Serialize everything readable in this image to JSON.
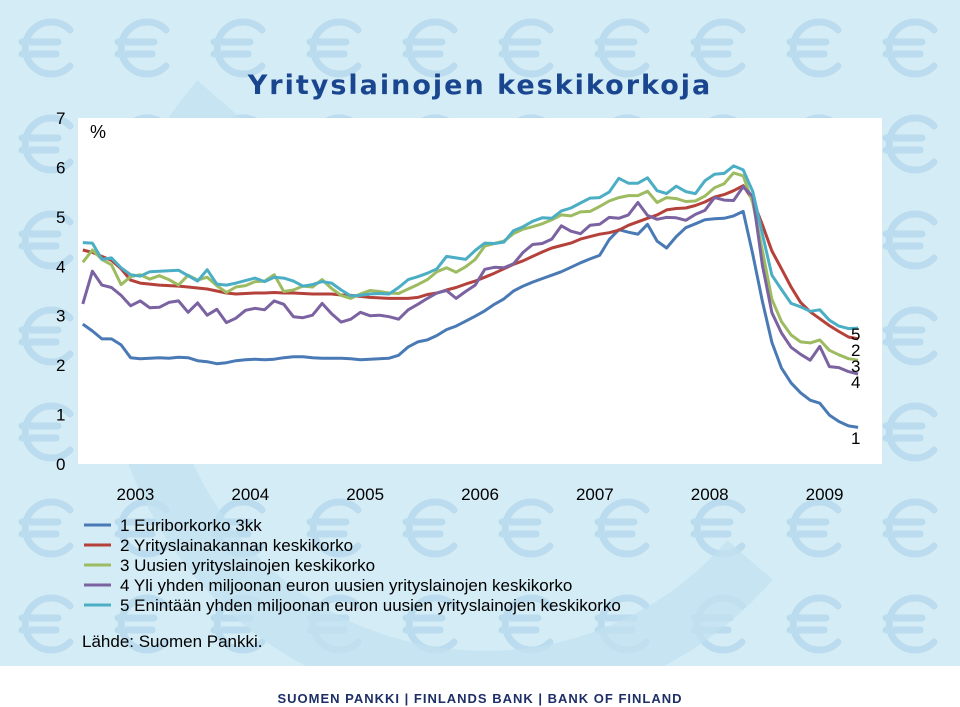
{
  "title": "Yrityslainojen keskikorkoja",
  "source": "Lähde: Suomen Pankki.",
  "footer": "SUOMEN PANKKI | FINLANDS BANK | BANK OF FINLAND",
  "colors": {
    "background": "#d4ecf6",
    "plot_background": "#ffffff",
    "title": "#1a4690",
    "footer_text": "#1d2f66",
    "watermark": "#b9dcee"
  },
  "watermark_icon": "euro-sign-icon",
  "chart_data": {
    "type": "line",
    "title": "Yrityslainojen keskikorkoja",
    "ylabel": "%",
    "ylim": [
      0,
      7
    ],
    "yticks": [
      "0",
      "1",
      "2",
      "3",
      "4",
      "5",
      "6",
      "7"
    ],
    "x_start": "2003-01",
    "x_end": "2009-12",
    "xticks": [
      "2003",
      "2004",
      "2005",
      "2006",
      "2007",
      "2008",
      "2009"
    ],
    "grid": false,
    "legend_position": "bottom",
    "end_labels": [
      "5",
      "2",
      "3",
      "4",
      "1"
    ],
    "series": [
      {
        "name": "1 Euriborkorko 3kk",
        "end_label": "1",
        "color": "#4a7ab5",
        "start": "2003-01",
        "values": [
          2.83,
          2.69,
          2.53,
          2.53,
          2.41,
          2.15,
          2.13,
          2.14,
          2.15,
          2.14,
          2.16,
          2.15,
          2.09,
          2.07,
          2.03,
          2.05,
          2.09,
          2.11,
          2.12,
          2.11,
          2.12,
          2.15,
          2.17,
          2.17,
          2.15,
          2.14,
          2.14,
          2.14,
          2.13,
          2.11,
          2.12,
          2.13,
          2.14,
          2.2,
          2.37,
          2.47,
          2.51,
          2.6,
          2.72,
          2.79,
          2.89,
          2.99,
          3.1,
          3.23,
          3.34,
          3.5,
          3.6,
          3.68,
          3.75,
          3.82,
          3.89,
          3.98,
          4.07,
          4.15,
          4.22,
          4.54,
          4.74,
          4.69,
          4.65,
          4.85,
          4.51,
          4.37,
          4.6,
          4.78,
          4.86,
          4.94,
          4.96,
          4.97,
          5.02,
          5.11,
          4.24,
          3.29,
          2.46,
          1.94,
          1.64,
          1.44,
          1.29,
          1.23,
          0.99,
          0.86,
          0.77,
          0.74
        ]
      },
      {
        "name": "2 Yrityslainakannan keskikorko",
        "end_label": "2",
        "color": "#b5413b",
        "start": "2003-01",
        "values": [
          4.33,
          4.28,
          4.2,
          4.12,
          3.95,
          3.72,
          3.66,
          3.64,
          3.62,
          3.61,
          3.6,
          3.58,
          3.56,
          3.54,
          3.5,
          3.46,
          3.44,
          3.45,
          3.46,
          3.46,
          3.47,
          3.46,
          3.46,
          3.45,
          3.44,
          3.44,
          3.44,
          3.42,
          3.41,
          3.39,
          3.37,
          3.36,
          3.35,
          3.35,
          3.35,
          3.37,
          3.43,
          3.46,
          3.52,
          3.57,
          3.64,
          3.7,
          3.78,
          3.86,
          3.95,
          4.04,
          4.11,
          4.2,
          4.29,
          4.37,
          4.42,
          4.47,
          4.55,
          4.6,
          4.65,
          4.68,
          4.73,
          4.83,
          4.9,
          4.97,
          5.04,
          5.14,
          5.17,
          5.18,
          5.23,
          5.3,
          5.4,
          5.45,
          5.53,
          5.63,
          5.34,
          4.84,
          4.31,
          3.95,
          3.58,
          3.27,
          3.08,
          2.94,
          2.8,
          2.68,
          2.57,
          2.53
        ]
      },
      {
        "name": "3 Uusien yrityslainojen keskikorko",
        "end_label": "3",
        "color": "#9dbb61",
        "start": "2003-01",
        "values": [
          4.08,
          4.33,
          4.14,
          4.03,
          3.63,
          3.79,
          3.83,
          3.74,
          3.81,
          3.73,
          3.62,
          3.82,
          3.72,
          3.78,
          3.61,
          3.47,
          3.58,
          3.61,
          3.69,
          3.7,
          3.83,
          3.49,
          3.52,
          3.6,
          3.58,
          3.73,
          3.55,
          3.41,
          3.35,
          3.44,
          3.51,
          3.49,
          3.46,
          3.45,
          3.54,
          3.63,
          3.73,
          3.89,
          3.97,
          3.88,
          3.99,
          4.14,
          4.41,
          4.46,
          4.51,
          4.66,
          4.75,
          4.8,
          4.86,
          4.94,
          5.04,
          5.02,
          5.1,
          5.11,
          5.21,
          5.32,
          5.39,
          5.43,
          5.43,
          5.52,
          5.29,
          5.39,
          5.37,
          5.31,
          5.32,
          5.42,
          5.59,
          5.67,
          5.89,
          5.83,
          5.28,
          4.32,
          3.33,
          2.88,
          2.61,
          2.47,
          2.45,
          2.51,
          2.3,
          2.21,
          2.13,
          2.1
        ]
      },
      {
        "name": "4 Yli yhden miljoonan euron uusien yrityslainojen keskikorko",
        "end_label": "4",
        "color": "#7b62a0",
        "start": "2003-01",
        "values": [
          3.24,
          3.9,
          3.62,
          3.57,
          3.41,
          3.2,
          3.3,
          3.16,
          3.17,
          3.27,
          3.3,
          3.07,
          3.26,
          3.01,
          3.13,
          2.86,
          2.95,
          3.11,
          3.15,
          3.12,
          3.3,
          3.23,
          2.98,
          2.96,
          3.01,
          3.25,
          3.04,
          2.87,
          2.93,
          3.07,
          3.0,
          3.01,
          2.98,
          2.93,
          3.12,
          3.23,
          3.35,
          3.46,
          3.51,
          3.35,
          3.49,
          3.62,
          3.94,
          3.98,
          3.97,
          4.05,
          4.28,
          4.44,
          4.46,
          4.55,
          4.82,
          4.71,
          4.66,
          4.83,
          4.85,
          4.99,
          4.97,
          5.04,
          5.29,
          5.03,
          4.95,
          4.99,
          4.98,
          4.93,
          5.05,
          5.13,
          5.39,
          5.34,
          5.33,
          5.61,
          5.41,
          4.02,
          3.06,
          2.65,
          2.36,
          2.22,
          2.1,
          2.38,
          1.97,
          1.95,
          1.87,
          1.82
        ]
      },
      {
        "name": "5 Enintään yhden miljoonan euron uusien yrityslainojen keskikorko",
        "end_label": "5",
        "color": "#4baec5",
        "start": "2003-01",
        "values": [
          4.48,
          4.47,
          4.14,
          4.17,
          3.97,
          3.83,
          3.8,
          3.89,
          3.9,
          3.91,
          3.92,
          3.81,
          3.7,
          3.93,
          3.64,
          3.62,
          3.66,
          3.71,
          3.76,
          3.69,
          3.78,
          3.76,
          3.7,
          3.6,
          3.63,
          3.69,
          3.66,
          3.52,
          3.4,
          3.41,
          3.44,
          3.45,
          3.44,
          3.57,
          3.73,
          3.79,
          3.86,
          3.95,
          4.2,
          4.17,
          4.14,
          4.32,
          4.47,
          4.46,
          4.49,
          4.72,
          4.8,
          4.91,
          4.98,
          4.97,
          5.12,
          5.18,
          5.28,
          5.38,
          5.39,
          5.5,
          5.78,
          5.68,
          5.68,
          5.79,
          5.53,
          5.47,
          5.62,
          5.51,
          5.47,
          5.73,
          5.86,
          5.88,
          6.03,
          5.95,
          5.51,
          4.65,
          3.82,
          3.53,
          3.25,
          3.18,
          3.09,
          3.12,
          2.91,
          2.79,
          2.74,
          2.75
        ]
      }
    ]
  }
}
